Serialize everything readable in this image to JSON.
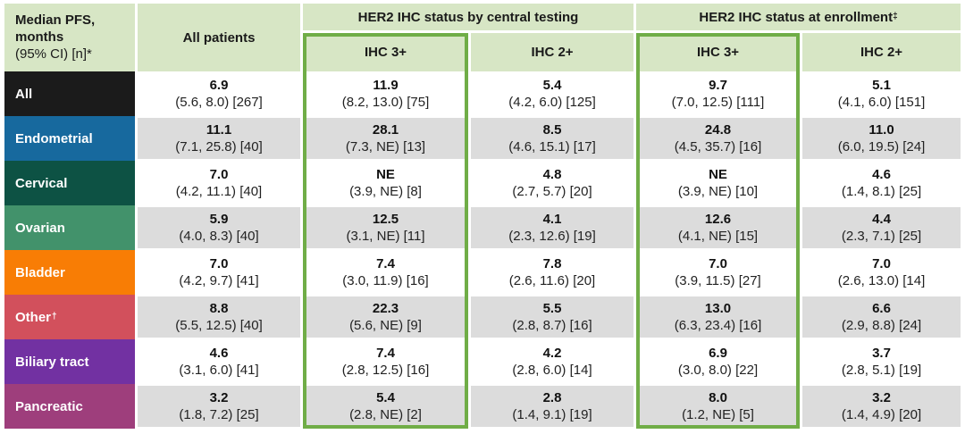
{
  "chart_data": {
    "type": "table",
    "corner_header": {
      "line1": "Median PFS,",
      "line2": "months",
      "line3": "(95% CI) [n]*"
    },
    "column_groups": [
      {
        "label": "HER2 IHC status by central testing",
        "sup": ""
      },
      {
        "label": "HER2 IHC status at enrollment",
        "sup": "‡"
      }
    ],
    "columns": [
      "All patients",
      "IHC 3+",
      "IHC 2+",
      "IHC 3+",
      "IHC 2+"
    ],
    "styles": {
      "header_bg": "#d7e6c5",
      "band_gray": "#dcdcdc",
      "highlight_border_green": "#70ad47"
    },
    "rows": [
      {
        "label": "All",
        "sup": "",
        "color": "#1b1b1b",
        "cells": [
          {
            "value": "6.9",
            "ci": "(5.6, 8.0) [267]"
          },
          {
            "value": "11.9",
            "ci": "(8.2, 13.0) [75]"
          },
          {
            "value": "5.4",
            "ci": "(4.2, 6.0) [125]"
          },
          {
            "value": "9.7",
            "ci": "(7.0, 12.5) [111]"
          },
          {
            "value": "5.1",
            "ci": "(4.1, 6.0) [151]"
          }
        ]
      },
      {
        "label": "Endometrial",
        "sup": "",
        "color": "#17699e",
        "cells": [
          {
            "value": "11.1",
            "ci": "(7.1, 25.8) [40]"
          },
          {
            "value": "28.1",
            "ci": "(7.3, NE) [13]"
          },
          {
            "value": "8.5",
            "ci": "(4.6, 15.1) [17]"
          },
          {
            "value": "24.8",
            "ci": "(4.5, 35.7) [16]"
          },
          {
            "value": "11.0",
            "ci": "(6.0, 19.5) [24]"
          }
        ]
      },
      {
        "label": "Cervical",
        "sup": "",
        "color": "#0d5244",
        "cells": [
          {
            "value": "7.0",
            "ci": "(4.2, 11.1) [40]"
          },
          {
            "value": "NE",
            "ci": "(3.9, NE) [8]"
          },
          {
            "value": "4.8",
            "ci": "(2.7, 5.7) [20]"
          },
          {
            "value": "NE",
            "ci": "(3.9, NE) [10]"
          },
          {
            "value": "4.6",
            "ci": "(1.4, 8.1) [25]"
          }
        ]
      },
      {
        "label": "Ovarian",
        "sup": "",
        "color": "#42926b",
        "cells": [
          {
            "value": "5.9",
            "ci": "(4.0, 8.3) [40]"
          },
          {
            "value": "12.5",
            "ci": "(3.1, NE) [11]"
          },
          {
            "value": "4.1",
            "ci": "(2.3, 12.6) [19]"
          },
          {
            "value": "12.6",
            "ci": "(4.1, NE) [15]"
          },
          {
            "value": "4.4",
            "ci": "(2.3, 7.1) [25]"
          }
        ]
      },
      {
        "label": "Bladder",
        "sup": "",
        "color": "#f87d05",
        "cells": [
          {
            "value": "7.0",
            "ci": "(4.2, 9.7) [41]"
          },
          {
            "value": "7.4",
            "ci": "(3.0, 11.9) [16]"
          },
          {
            "value": "7.8",
            "ci": "(2.6, 11.6) [20]"
          },
          {
            "value": "7.0",
            "ci": "(3.9, 11.5) [27]"
          },
          {
            "value": "7.0",
            "ci": "(2.6, 13.0) [14]"
          }
        ]
      },
      {
        "label": "Other",
        "sup": "†",
        "color": "#d2505c",
        "cells": [
          {
            "value": "8.8",
            "ci": "(5.5, 12.5) [40]"
          },
          {
            "value": "22.3",
            "ci": "(5.6, NE) [9]"
          },
          {
            "value": "5.5",
            "ci": "(2.8, 8.7) [16]"
          },
          {
            "value": "13.0",
            "ci": "(6.3, 23.4) [16]"
          },
          {
            "value": "6.6",
            "ci": "(2.9, 8.8) [24]"
          }
        ]
      },
      {
        "label": "Biliary tract",
        "sup": "",
        "color": "#7231a2",
        "cells": [
          {
            "value": "4.6",
            "ci": "(3.1, 6.0) [41]"
          },
          {
            "value": "7.4",
            "ci": "(2.8, 12.5) [16]"
          },
          {
            "value": "4.2",
            "ci": "(2.8, 6.0) [14]"
          },
          {
            "value": "6.9",
            "ci": "(3.0, 8.0) [22]"
          },
          {
            "value": "3.7",
            "ci": "(2.8, 5.1) [19]"
          }
        ]
      },
      {
        "label": "Pancreatic",
        "sup": "",
        "color": "#9e3e7c",
        "cells": [
          {
            "value": "3.2",
            "ci": "(1.8, 7.2) [25]"
          },
          {
            "value": "5.4",
            "ci": "(2.8, NE) [2]"
          },
          {
            "value": "2.8",
            "ci": "(1.4, 9.1) [19]"
          },
          {
            "value": "8.0",
            "ci": "(1.2, NE) [5]"
          },
          {
            "value": "3.2",
            "ci": "(1.4, 4.9) [20]"
          }
        ]
      }
    ]
  }
}
